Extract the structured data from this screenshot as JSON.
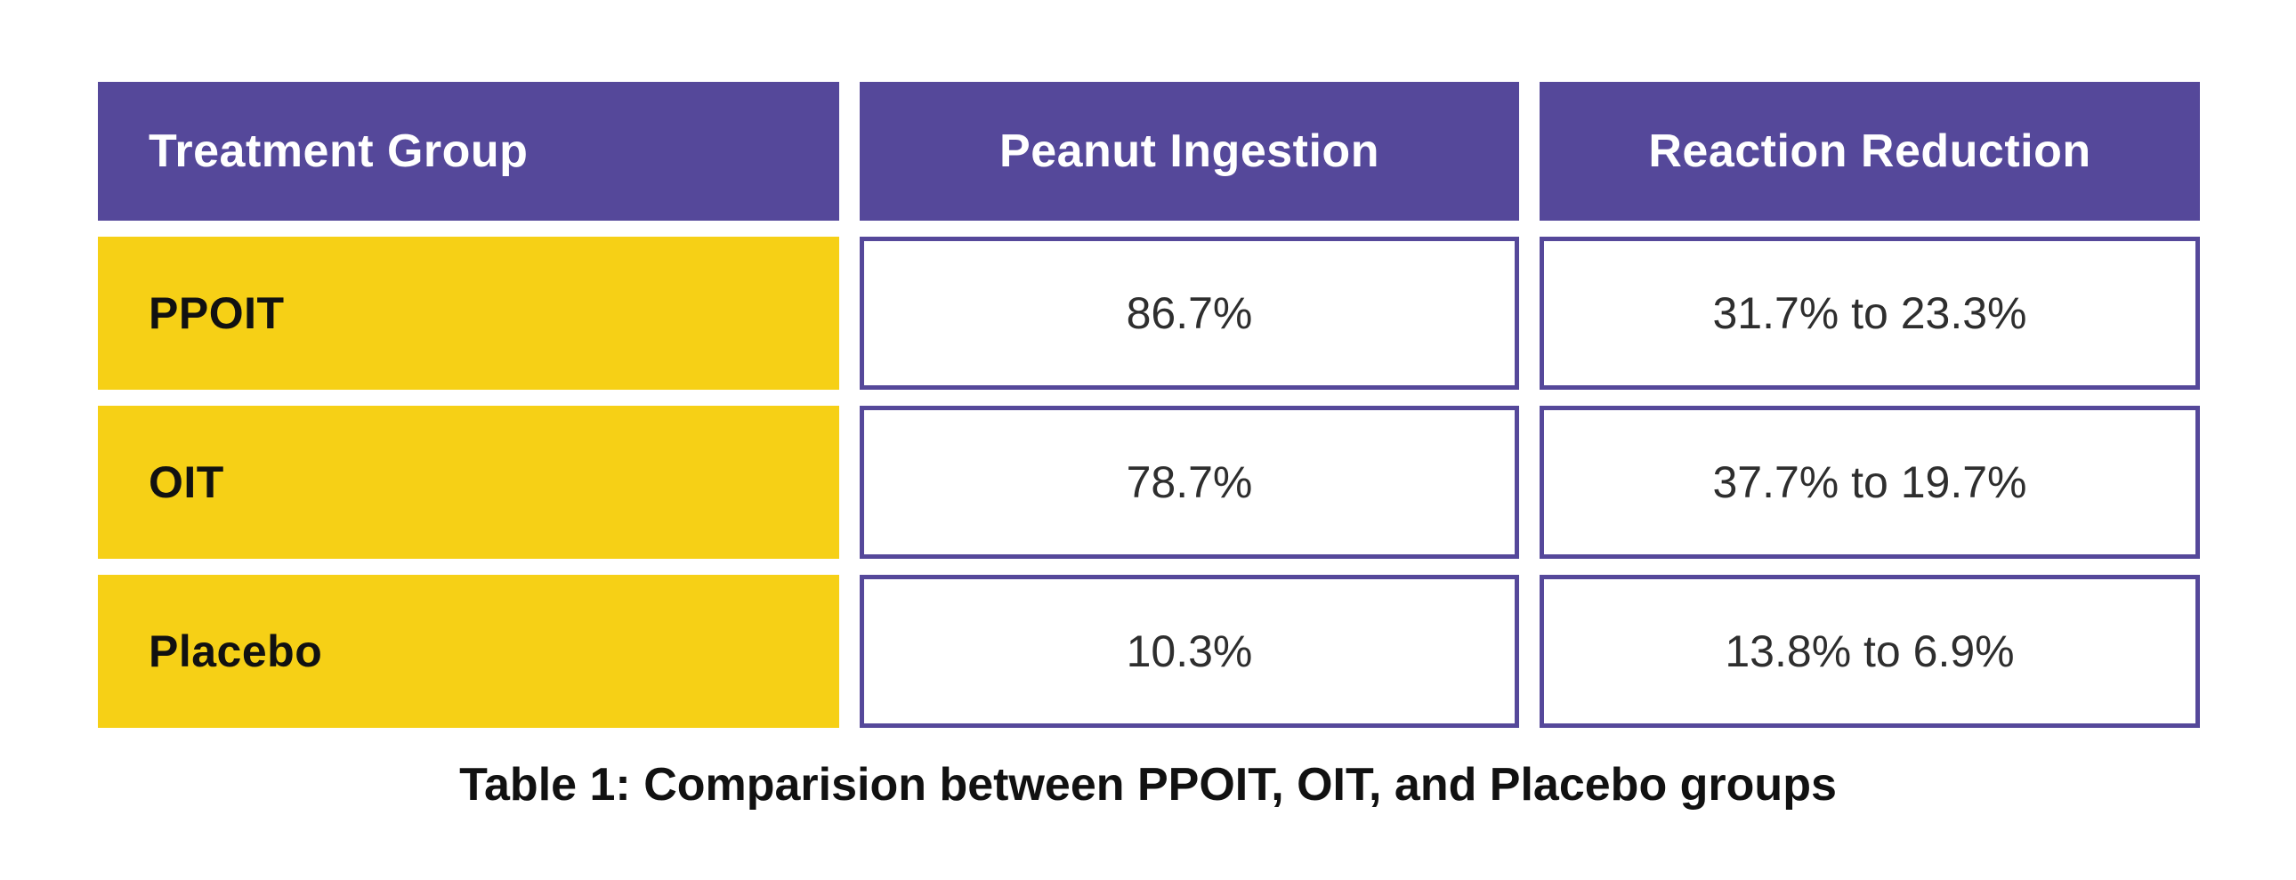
{
  "colors": {
    "page_bg": "#FFFFFF",
    "header_bg": "#55489A",
    "header_text": "#FFFFFF",
    "row_bg": "#F6D016",
    "row_text": "#111111",
    "cell_border": "#55489A",
    "cell_bg": "#FFFFFF",
    "cell_text": "#2E2E2E",
    "caption_text": "#111111"
  },
  "table": {
    "columns": [
      "Treatment Group",
      "Peanut Ingestion",
      "Reaction Reduction"
    ],
    "rows": [
      {
        "label": "PPOIT",
        "peanut_ingestion": "86.7%",
        "reaction_reduction": "31.7% to 23.3%"
      },
      {
        "label": "OIT",
        "peanut_ingestion": "78.7%",
        "reaction_reduction": "37.7% to 19.7%"
      },
      {
        "label": "Placebo",
        "peanut_ingestion": "10.3%",
        "reaction_reduction": "13.8% to 6.9%"
      }
    ],
    "caption": "Table 1: Comparision between PPOIT, OIT, and Placebo groups"
  },
  "chart_data": {
    "type": "table",
    "title": "Table 1: Comparision between PPOIT, OIT, and Placebo groups",
    "columns": [
      "Treatment Group",
      "Peanut Ingestion",
      "Reaction Reduction"
    ],
    "rows": [
      [
        "PPOIT",
        "86.7%",
        "31.7% to 23.3%"
      ],
      [
        "OIT",
        "78.7%",
        "37.7% to 19.7%"
      ],
      [
        "Placebo",
        "10.3%",
        "13.8% to 6.9%"
      ]
    ],
    "notes": {
      "peanut_ingestion_values_pct": [
        86.7,
        78.7,
        10.3
      ],
      "reaction_reduction_from_pct": [
        31.7,
        37.7,
        13.8
      ],
      "reaction_reduction_to_pct": [
        23.3,
        19.7,
        6.9
      ]
    }
  }
}
